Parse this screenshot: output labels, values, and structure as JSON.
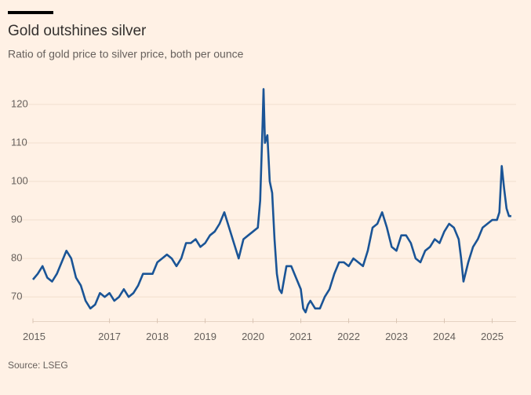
{
  "chart_data": {
    "type": "line",
    "title": "Gold outshines silver",
    "subtitle": "Ratio of gold price to silver price, both per ounce",
    "source": "Source: LSEG",
    "color": "#1a5496",
    "grid": true,
    "xlim": [
      2015.4,
      2025.5
    ],
    "xticks": [
      2015,
      2017,
      2018,
      2019,
      2020,
      2021,
      2022,
      2023,
      2024,
      2025
    ],
    "ylim": [
      64,
      125
    ],
    "yticks": [
      70,
      80,
      90,
      100,
      110,
      120
    ],
    "x": [
      2015.4,
      2015.5,
      2015.6,
      2015.7,
      2015.8,
      2015.9,
      2016.0,
      2016.1,
      2016.2,
      2016.3,
      2016.4,
      2016.5,
      2016.6,
      2016.7,
      2016.8,
      2016.9,
      2017.0,
      2017.1,
      2017.2,
      2017.3,
      2017.4,
      2017.5,
      2017.6,
      2017.7,
      2017.8,
      2017.9,
      2018.0,
      2018.1,
      2018.2,
      2018.3,
      2018.4,
      2018.5,
      2018.6,
      2018.7,
      2018.8,
      2018.9,
      2019.0,
      2019.1,
      2019.2,
      2019.3,
      2019.4,
      2019.5,
      2019.6,
      2019.7,
      2019.8,
      2019.9,
      2020.0,
      2020.1,
      2020.15,
      2020.2,
      2020.22,
      2020.25,
      2020.3,
      2020.35,
      2020.4,
      2020.45,
      2020.5,
      2020.55,
      2020.6,
      2020.7,
      2020.8,
      2020.9,
      2021.0,
      2021.05,
      2021.1,
      2021.15,
      2021.2,
      2021.3,
      2021.4,
      2021.5,
      2021.6,
      2021.7,
      2021.8,
      2021.9,
      2022.0,
      2022.1,
      2022.2,
      2022.3,
      2022.4,
      2022.5,
      2022.6,
      2022.7,
      2022.8,
      2022.9,
      2023.0,
      2023.1,
      2023.2,
      2023.3,
      2023.4,
      2023.5,
      2023.6,
      2023.7,
      2023.8,
      2023.9,
      2024.0,
      2024.1,
      2024.2,
      2024.3,
      2024.35,
      2024.4,
      2024.5,
      2024.6,
      2024.7,
      2024.8,
      2024.9,
      2025.0,
      2025.1,
      2025.15,
      2025.2,
      2025.25,
      2025.3,
      2025.35,
      2025.4
    ],
    "values": [
      74.5,
      76,
      78,
      75,
      74,
      76,
      79,
      82,
      80,
      75,
      73,
      69,
      67,
      68,
      71,
      70,
      71,
      69,
      70,
      72,
      70,
      71,
      73,
      76,
      76,
      76,
      79,
      80,
      81,
      80,
      78,
      80,
      84,
      84,
      85,
      83,
      84,
      86,
      87,
      89,
      92,
      88,
      84,
      80,
      85,
      86,
      87,
      88,
      95,
      115,
      124,
      110,
      112,
      100,
      97,
      85,
      76,
      72,
      71,
      78,
      78,
      75,
      72,
      67,
      66,
      68,
      69,
      67,
      67,
      70,
      72,
      76,
      79,
      79,
      78,
      80,
      79,
      78,
      82,
      88,
      89,
      92,
      88,
      83,
      82,
      86,
      86,
      84,
      80,
      79,
      82,
      83,
      85,
      84,
      87,
      89,
      88,
      85,
      80,
      74,
      79,
      83,
      85,
      88,
      89,
      90,
      90,
      92,
      104,
      98,
      93,
      91,
      91
    ]
  }
}
